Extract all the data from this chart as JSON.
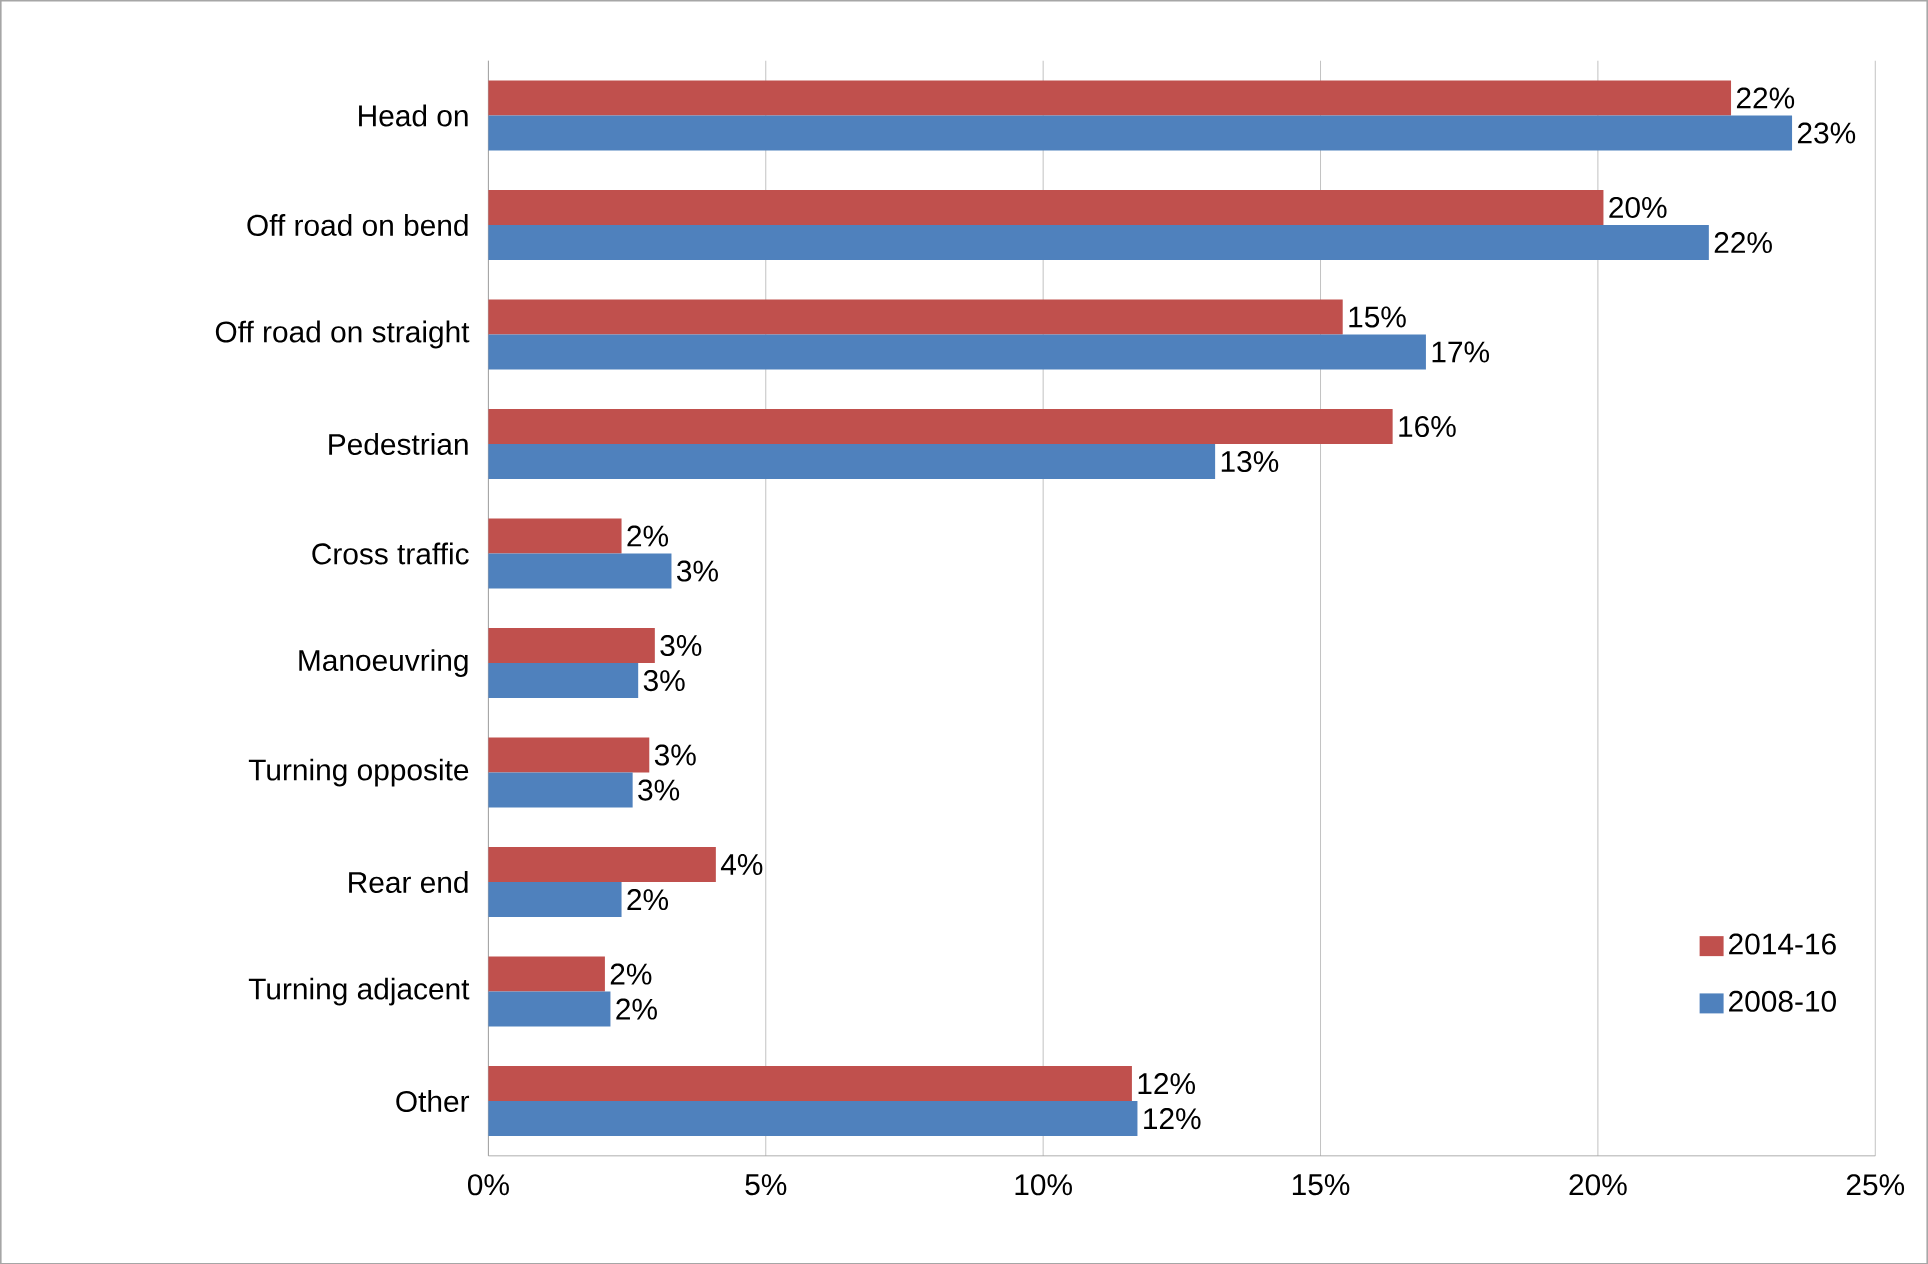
{
  "chart_data": {
    "type": "bar",
    "orientation": "horizontal",
    "categories": [
      "Head on",
      "Off road on bend",
      "Off road on straight",
      "Pedestrian",
      "Cross traffic",
      "Manoeuvring",
      "Turning opposite",
      "Rear end",
      "Turning adjacent",
      "Other"
    ],
    "series": [
      {
        "name": "2014-16",
        "color": "#c0504d",
        "values": [
          22.4,
          20.1,
          15.4,
          16.3,
          2.4,
          3.0,
          2.9,
          4.1,
          2.1,
          11.6
        ],
        "value_labels": [
          "22%",
          "20%",
          "15%",
          "16%",
          "2%",
          "3%",
          "3%",
          "4%",
          "2%",
          "12%"
        ]
      },
      {
        "name": "2008-10",
        "color": "#4f81bd",
        "values": [
          23.5,
          22.0,
          16.9,
          13.1,
          3.3,
          2.7,
          2.6,
          2.4,
          2.2,
          11.7
        ],
        "value_labels": [
          "23%",
          "22%",
          "17%",
          "13%",
          "3%",
          "3%",
          "3%",
          "2%",
          "2%",
          "12%"
        ]
      }
    ],
    "xlim": [
      0,
      25
    ],
    "xticks": [
      {
        "value": 0,
        "label": "0%"
      },
      {
        "value": 5,
        "label": "5%"
      },
      {
        "value": 10,
        "label": "10%"
      },
      {
        "value": 15,
        "label": "15%"
      },
      {
        "value": 20,
        "label": "20%"
      },
      {
        "value": 25,
        "label": "25%"
      }
    ],
    "grid": "x",
    "legend": "bottom right"
  }
}
